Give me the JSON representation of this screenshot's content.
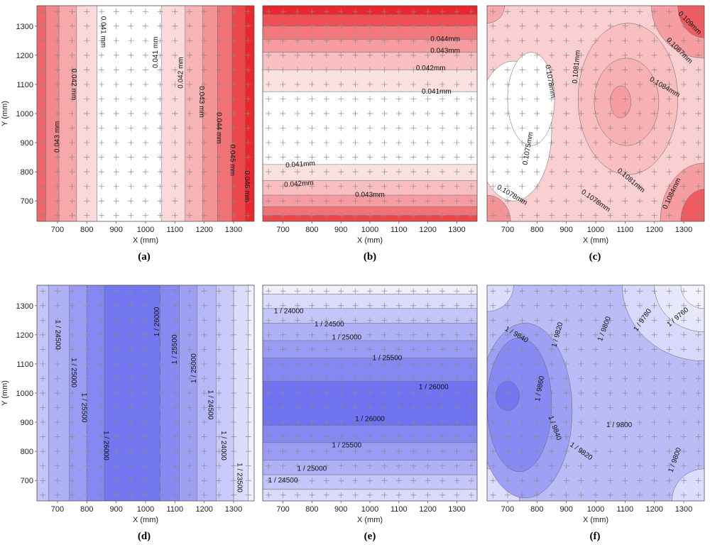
{
  "chart_data": [
    {
      "id": "a",
      "panel_label": "(a)",
      "type": "contour",
      "colormap": "red",
      "xlabel": "X (mm)",
      "ylabel": "Y (mm)",
      "xlim": [
        630,
        1370
      ],
      "ylim": [
        630,
        1370
      ],
      "xticks": [
        "700",
        "800",
        "900",
        "1000",
        "1100",
        "1200",
        "1300"
      ],
      "yticks": [
        "700",
        "800",
        "900",
        "1000",
        "1100",
        "1200",
        "1300"
      ],
      "orientation": "vertical",
      "bands": [
        {
          "edges": [
            630,
            660
          ],
          "level": 0.7
        },
        {
          "edges": [
            660,
            705
          ],
          "level": 0.55
        },
        {
          "edges": [
            705,
            765
          ],
          "level": 0.4
        },
        {
          "edges": [
            765,
            835
          ],
          "level": 0.18
        },
        {
          "edges": [
            835,
            1055
          ],
          "level": 0.0
        },
        {
          "edges": [
            1055,
            1135
          ],
          "level": 0.18
        },
        {
          "edges": [
            1135,
            1195
          ],
          "level": 0.35
        },
        {
          "edges": [
            1195,
            1245
          ],
          "level": 0.5
        },
        {
          "edges": [
            1245,
            1295
          ],
          "level": 0.65
        },
        {
          "edges": [
            1295,
            1340
          ],
          "level": 0.85
        },
        {
          "edges": [
            1340,
            1370
          ],
          "level": 1.0
        }
      ],
      "labels": [
        {
          "text": "0.041 mm",
          "x": 855,
          "y": 1280,
          "rot": 90
        },
        {
          "text": "0.041 mm",
          "x": 1035,
          "y": 1210,
          "rot": -90
        },
        {
          "text": "0.042 mm",
          "x": 755,
          "y": 1100,
          "rot": 90
        },
        {
          "text": "0.042 mm",
          "x": 1120,
          "y": 1140,
          "rot": -90
        },
        {
          "text": "0.043 mm",
          "x": 1190,
          "y": 1040,
          "rot": 90
        },
        {
          "text": "0.044 mm",
          "x": 1250,
          "y": 950,
          "rot": 90
        },
        {
          "text": "0.043 mm",
          "x": 700,
          "y": 920,
          "rot": -90
        },
        {
          "text": "0.045 mm",
          "x": 1295,
          "y": 840,
          "rot": 90
        },
        {
          "text": "0.046 mm",
          "x": 1345,
          "y": 750,
          "rot": 90
        }
      ]
    },
    {
      "id": "b",
      "panel_label": "(b)",
      "type": "contour",
      "colormap": "red",
      "xlabel": "X (mm)",
      "ylabel": "",
      "xlim": [
        630,
        1370
      ],
      "ylim": [
        630,
        1370
      ],
      "xticks": [
        "700",
        "800",
        "900",
        "1000",
        "1100",
        "1200",
        "1300"
      ],
      "yticks": [],
      "orientation": "horizontal",
      "bands": [
        {
          "edges": [
            1340,
            1370
          ],
          "level": 1.0
        },
        {
          "edges": [
            1300,
            1340
          ],
          "level": 0.8
        },
        {
          "edges": [
            1255,
            1300
          ],
          "level": 0.62
        },
        {
          "edges": [
            1210,
            1255
          ],
          "level": 0.45
        },
        {
          "edges": [
            1150,
            1210
          ],
          "level": 0.3
        },
        {
          "edges": [
            1075,
            1150
          ],
          "level": 0.14
        },
        {
          "edges": [
            825,
            1075
          ],
          "level": 0.0
        },
        {
          "edges": [
            770,
            825
          ],
          "level": 0.14
        },
        {
          "edges": [
            720,
            770
          ],
          "level": 0.3
        },
        {
          "edges": [
            680,
            720
          ],
          "level": 0.45
        },
        {
          "edges": [
            650,
            680
          ],
          "level": 0.65
        },
        {
          "edges": [
            630,
            650
          ],
          "level": 0.85
        }
      ],
      "labels": [
        {
          "text": "0.044mm",
          "x": 1260,
          "y": 1255,
          "rot": 0
        },
        {
          "text": "0.043mm",
          "x": 1260,
          "y": 1215,
          "rot": 0
        },
        {
          "text": "0.042mm",
          "x": 1210,
          "y": 1155,
          "rot": 0
        },
        {
          "text": "0.041mm",
          "x": 1230,
          "y": 1075,
          "rot": 0
        },
        {
          "text": "0.041mm",
          "x": 760,
          "y": 825,
          "rot": -4
        },
        {
          "text": "0.042mm",
          "x": 755,
          "y": 758,
          "rot": -4
        },
        {
          "text": "0.043mm",
          "x": 1000,
          "y": 720,
          "rot": 0
        }
      ]
    },
    {
      "id": "c",
      "panel_label": "(c)",
      "type": "contour",
      "colormap": "red",
      "xlabel": "X (mm)",
      "ylabel": "",
      "xlim": [
        630,
        1370
      ],
      "ylim": [
        630,
        1370
      ],
      "xticks": [
        "700",
        "800",
        "900",
        "1000",
        "1100",
        "1200",
        "1300"
      ],
      "yticks": [],
      "orientation": "blob",
      "base_level": 0.22,
      "blobs": [
        {
          "cx": 720,
          "cy": 940,
          "rx": 130,
          "ry": 240,
          "level": 0.0
        },
        {
          "cx": 780,
          "cy": 1050,
          "rx": 80,
          "ry": 160,
          "level": 0.0
        },
        {
          "cx": 1110,
          "cy": 1050,
          "rx": 170,
          "ry": 260,
          "level": 0.3
        },
        {
          "cx": 1105,
          "cy": 1040,
          "rx": 110,
          "ry": 150,
          "level": 0.36
        },
        {
          "cx": 1085,
          "cy": 1040,
          "rx": 35,
          "ry": 55,
          "level": 0.45
        },
        {
          "cx": 1370,
          "cy": 1370,
          "rx": 180,
          "ry": 180,
          "level": 0.45
        },
        {
          "cx": 1370,
          "cy": 1370,
          "rx": 90,
          "ry": 110,
          "level": 0.75
        },
        {
          "cx": 1370,
          "cy": 630,
          "rx": 150,
          "ry": 200,
          "level": 0.45
        },
        {
          "cx": 1370,
          "cy": 630,
          "rx": 80,
          "ry": 110,
          "level": 0.75
        },
        {
          "cx": 630,
          "cy": 630,
          "rx": 80,
          "ry": 90,
          "level": 0.5
        },
        {
          "cx": 630,
          "cy": 1370,
          "rx": 60,
          "ry": 60,
          "level": 0.4
        }
      ],
      "labels": [
        {
          "text": "0.1078mm",
          "x": 845,
          "y": 1110,
          "rot": 80
        },
        {
          "text": "0.1081mm",
          "x": 935,
          "y": 1160,
          "rot": -85
        },
        {
          "text": "0.1075mm",
          "x": 770,
          "y": 880,
          "rot": -80
        },
        {
          "text": "0.1078mm",
          "x": 715,
          "y": 720,
          "rot": 30
        },
        {
          "text": "0.1078mm",
          "x": 1000,
          "y": 700,
          "rot": 35
        },
        {
          "text": "0.1081mm",
          "x": 1120,
          "y": 770,
          "rot": 40
        },
        {
          "text": "0.1084mm",
          "x": 1260,
          "y": 725,
          "rot": -65
        },
        {
          "text": "0.1084mm",
          "x": 1235,
          "y": 1090,
          "rot": 30
        },
        {
          "text": "0.1087mm",
          "x": 1285,
          "y": 1215,
          "rot": 45
        },
        {
          "text": "0.109mm",
          "x": 1320,
          "y": 1310,
          "rot": 45
        }
      ]
    },
    {
      "id": "d",
      "panel_label": "(d)",
      "type": "contour",
      "colormap": "blue",
      "xlabel": "X (mm)",
      "ylabel": "Y (mm)",
      "xlim": [
        630,
        1370
      ],
      "ylim": [
        630,
        1370
      ],
      "xticks": [
        "700",
        "800",
        "900",
        "1000",
        "1100",
        "1200",
        "1300"
      ],
      "yticks": [
        "700",
        "800",
        "900",
        "1000",
        "1100",
        "1200",
        "1300"
      ],
      "orientation": "vertical",
      "bands": [
        {
          "edges": [
            630,
            670
          ],
          "level": 0.35
        },
        {
          "edges": [
            670,
            740
          ],
          "level": 0.5
        },
        {
          "edges": [
            740,
            800
          ],
          "level": 0.65
        },
        {
          "edges": [
            800,
            860
          ],
          "level": 0.8
        },
        {
          "edges": [
            860,
            1050
          ],
          "level": 0.92
        },
        {
          "edges": [
            1050,
            1115
          ],
          "level": 0.78
        },
        {
          "edges": [
            1115,
            1175
          ],
          "level": 0.62
        },
        {
          "edges": [
            1175,
            1240
          ],
          "level": 0.46
        },
        {
          "edges": [
            1240,
            1300
          ],
          "level": 0.32
        },
        {
          "edges": [
            1300,
            1350
          ],
          "level": 0.18
        },
        {
          "edges": [
            1350,
            1370
          ],
          "level": 0.05
        }
      ],
      "labels": [
        {
          "text": "1 / 24500",
          "x": 700,
          "y": 1200,
          "rot": 90
        },
        {
          "text": "1 / 25000",
          "x": 755,
          "y": 1070,
          "rot": 90
        },
        {
          "text": "1 / 25500",
          "x": 790,
          "y": 950,
          "rot": 90
        },
        {
          "text": "1 / 26000",
          "x": 865,
          "y": 820,
          "rot": 90
        },
        {
          "text": "1 / 26000",
          "x": 1040,
          "y": 1245,
          "rot": -90
        },
        {
          "text": "1 / 25500",
          "x": 1100,
          "y": 1150,
          "rot": -90
        },
        {
          "text": "1 / 25000",
          "x": 1165,
          "y": 1085,
          "rot": -90
        },
        {
          "text": "1 / 24500",
          "x": 1220,
          "y": 960,
          "rot": 90
        },
        {
          "text": "1 / 24000",
          "x": 1265,
          "y": 820,
          "rot": 90
        },
        {
          "text": "1 / 23500",
          "x": 1320,
          "y": 710,
          "rot": 90
        }
      ]
    },
    {
      "id": "e",
      "panel_label": "(e)",
      "type": "contour",
      "colormap": "blue",
      "xlabel": "X (mm)",
      "ylabel": "",
      "xlim": [
        630,
        1370
      ],
      "ylim": [
        630,
        1370
      ],
      "xticks": [
        "700",
        "800",
        "900",
        "1000",
        "1100",
        "1200",
        "1300"
      ],
      "yticks": [],
      "orientation": "horizontal",
      "bands": [
        {
          "edges": [
            1340,
            1370
          ],
          "level": 0.05
        },
        {
          "edges": [
            1290,
            1340
          ],
          "level": 0.2
        },
        {
          "edges": [
            1240,
            1290
          ],
          "level": 0.35
        },
        {
          "edges": [
            1180,
            1240
          ],
          "level": 0.5
        },
        {
          "edges": [
            1120,
            1180
          ],
          "level": 0.65
        },
        {
          "edges": [
            1040,
            1120
          ],
          "level": 0.8
        },
        {
          "edges": [
            890,
            1040
          ],
          "level": 0.95
        },
        {
          "edges": [
            830,
            890
          ],
          "level": 0.8
        },
        {
          "edges": [
            770,
            830
          ],
          "level": 0.65
        },
        {
          "edges": [
            720,
            770
          ],
          "level": 0.5
        },
        {
          "edges": [
            670,
            720
          ],
          "level": 0.35
        },
        {
          "edges": [
            630,
            670
          ],
          "level": 0.2
        }
      ],
      "labels": [
        {
          "text": "1 / 24000",
          "x": 720,
          "y": 1280,
          "rot": 0
        },
        {
          "text": "1 / 24500",
          "x": 860,
          "y": 1235,
          "rot": 0
        },
        {
          "text": "1 / 25000",
          "x": 920,
          "y": 1190,
          "rot": 0
        },
        {
          "text": "1 / 25500",
          "x": 1060,
          "y": 1120,
          "rot": 0
        },
        {
          "text": "1 / 26000",
          "x": 1220,
          "y": 1020,
          "rot": 0
        },
        {
          "text": "1 / 26000",
          "x": 1000,
          "y": 910,
          "rot": 0
        },
        {
          "text": "1 / 25500",
          "x": 920,
          "y": 820,
          "rot": 0
        },
        {
          "text": "1 / 25000",
          "x": 800,
          "y": 740,
          "rot": 0
        },
        {
          "text": "1 / 24500",
          "x": 700,
          "y": 700,
          "rot": 0
        }
      ]
    },
    {
      "id": "f",
      "panel_label": "(f)",
      "type": "contour",
      "colormap": "blue",
      "xlabel": "X (mm)",
      "ylabel": "",
      "xlim": [
        630,
        1370
      ],
      "ylim": [
        630,
        1370
      ],
      "xticks": [
        "700",
        "800",
        "900",
        "1000",
        "1100",
        "1200",
        "1300"
      ],
      "yticks": [],
      "orientation": "blob",
      "base_level": 0.42,
      "blobs": [
        {
          "cx": 1370,
          "cy": 1370,
          "rx": 280,
          "ry": 260,
          "level": 0.22
        },
        {
          "cx": 1370,
          "cy": 1370,
          "rx": 170,
          "ry": 160,
          "level": 0.1
        },
        {
          "cx": 1370,
          "cy": 1370,
          "rx": 80,
          "ry": 80,
          "level": 0.02
        },
        {
          "cx": 630,
          "cy": 1370,
          "rx": 90,
          "ry": 90,
          "level": 0.18
        },
        {
          "cx": 630,
          "cy": 630,
          "rx": 110,
          "ry": 110,
          "level": 0.18
        },
        {
          "cx": 1370,
          "cy": 630,
          "rx": 110,
          "ry": 110,
          "level": 0.18
        },
        {
          "cx": 760,
          "cy": 940,
          "rx": 160,
          "ry": 300,
          "level": 0.62
        },
        {
          "cx": 740,
          "cy": 960,
          "rx": 110,
          "ry": 230,
          "level": 0.78
        },
        {
          "cx": 700,
          "cy": 990,
          "rx": 40,
          "ry": 50,
          "level": 0.92
        }
      ],
      "labels": [
        {
          "text": "1 / 9840",
          "x": 730,
          "y": 1200,
          "rot": 30
        },
        {
          "text": "1 / 9820",
          "x": 870,
          "y": 1200,
          "rot": -75
        },
        {
          "text": "1 / 9800",
          "x": 1030,
          "y": 1220,
          "rot": -70
        },
        {
          "text": "1 / 9780",
          "x": 1160,
          "y": 1250,
          "rot": -55
        },
        {
          "text": "1 / 9760",
          "x": 1280,
          "y": 1260,
          "rot": -40
        },
        {
          "text": "1 / 9860",
          "x": 810,
          "y": 1015,
          "rot": -80
        },
        {
          "text": "1 / 9840",
          "x": 860,
          "y": 880,
          "rot": 70
        },
        {
          "text": "1 / 9820",
          "x": 950,
          "y": 800,
          "rot": 35
        },
        {
          "text": "1 / 9800",
          "x": 1080,
          "y": 890,
          "rot": 0
        },
        {
          "text": "1 / 9800",
          "x": 1270,
          "y": 770,
          "rot": -70
        }
      ]
    }
  ]
}
